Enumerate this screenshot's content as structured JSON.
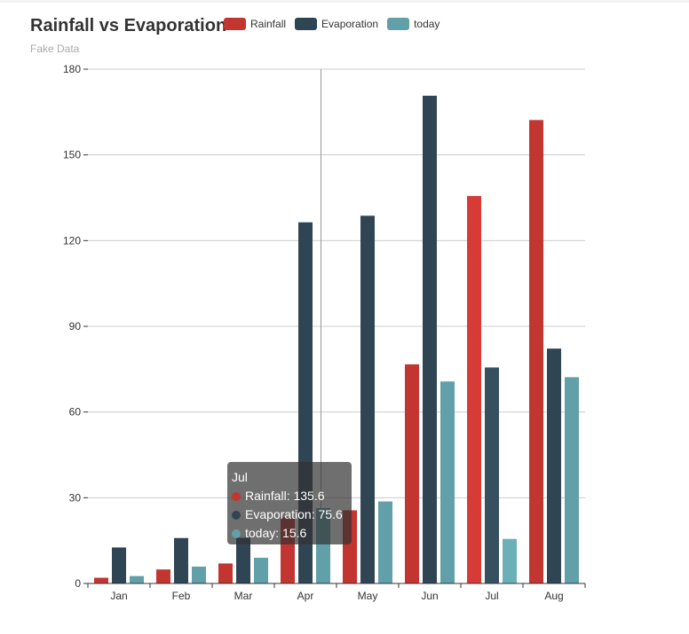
{
  "chart_data": {
    "type": "bar",
    "title": "Rainfall vs Evaporation",
    "subtitle": "Fake Data",
    "categories": [
      "Jan",
      "Feb",
      "Mar",
      "Apr",
      "May",
      "Jun",
      "Jul",
      "Aug"
    ],
    "series": [
      {
        "name": "Rainfall",
        "color": "#c23531",
        "values": [
          2.0,
          4.9,
          7.0,
          23.2,
          25.6,
          76.7,
          135.6,
          162.2
        ]
      },
      {
        "name": "Evaporation",
        "color": "#2f4554",
        "values": [
          12.6,
          15.9,
          16.0,
          126.4,
          128.7,
          170.7,
          75.6,
          82.2
        ]
      },
      {
        "name": "today",
        "color": "#61a0a8",
        "values": [
          2.6,
          5.9,
          9.0,
          26.4,
          28.7,
          70.7,
          15.6,
          72.2
        ]
      }
    ],
    "ylim": [
      0,
      180
    ],
    "yticks": [
      "0",
      "30",
      "60",
      "90",
      "120",
      "150",
      "180"
    ],
    "legend_position": "top",
    "grid": true
  },
  "tooltip": {
    "title": "Jul",
    "rows": [
      "Rainfall: 135.6",
      "Evaporation: 75.6",
      "today: 15.6"
    ]
  }
}
